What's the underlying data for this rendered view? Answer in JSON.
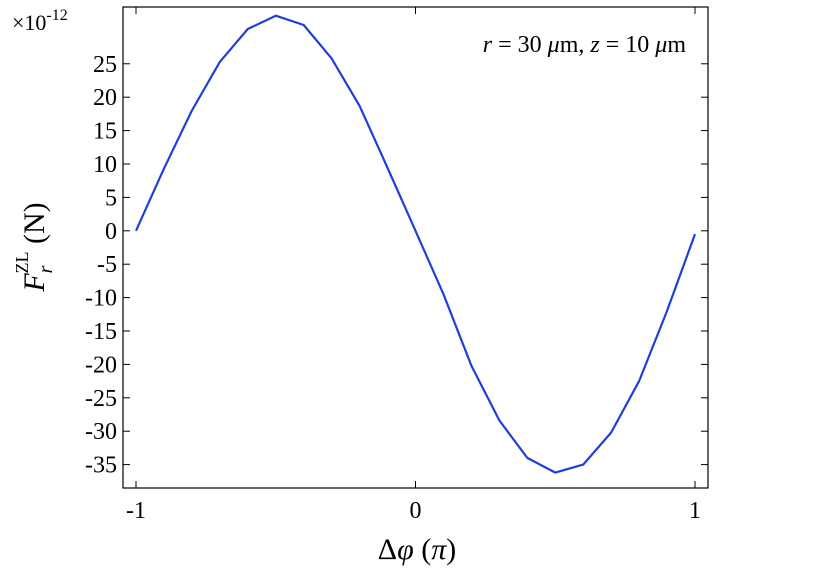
{
  "chart_data": {
    "type": "line",
    "title": "",
    "annotation": {
      "r_symbol": "r",
      "r_value": " = 30 ",
      "mu1": "μ",
      "m1": "m, ",
      "z_symbol": "z",
      "z_value": " = 10 ",
      "mu2": "μ",
      "m2": "m"
    },
    "xlabel": {
      "delta": "Δ",
      "phi": "φ",
      "open": " (",
      "pi": "π",
      "close": ")"
    },
    "ylabel": {
      "F": "F",
      "sub": "r",
      "sup": "ZL",
      "unit": " (N)"
    },
    "y_multiplier": {
      "base": "×10",
      "exponent": "-12"
    },
    "xlim": [
      -1.0,
      1.0
    ],
    "ylim": [
      -38.5,
      33.5
    ],
    "x_ticks": [
      -1,
      0,
      1
    ],
    "x_tick_labels": [
      "-1",
      "0",
      "1"
    ],
    "y_ticks": [
      25,
      20,
      15,
      10,
      5,
      0,
      -5,
      -10,
      -15,
      -20,
      -25,
      -30,
      -35
    ],
    "y_tick_labels": [
      "25",
      "20",
      "15",
      "10",
      "5",
      "0",
      "-5",
      "-10",
      "-15",
      "-20",
      "-25",
      "-30",
      "-35"
    ],
    "grid": false,
    "series": [
      {
        "color": "#1f3fd8",
        "x": [
          -1.0,
          -0.9,
          -0.8,
          -0.7,
          -0.6,
          -0.5,
          -0.4,
          -0.3,
          -0.2,
          -0.1,
          0.0,
          0.1,
          0.2,
          0.3,
          0.4,
          0.5,
          0.6,
          0.7,
          0.8,
          0.9,
          1.0
        ],
        "y": [
          0.0,
          9.3,
          18.0,
          25.3,
          30.2,
          32.2,
          30.8,
          25.8,
          18.7,
          9.4,
          0.0,
          -9.5,
          -20.2,
          -28.4,
          -34.0,
          -36.2,
          -35.0,
          -30.2,
          -22.5,
          -12.0,
          -0.5
        ]
      }
    ]
  }
}
